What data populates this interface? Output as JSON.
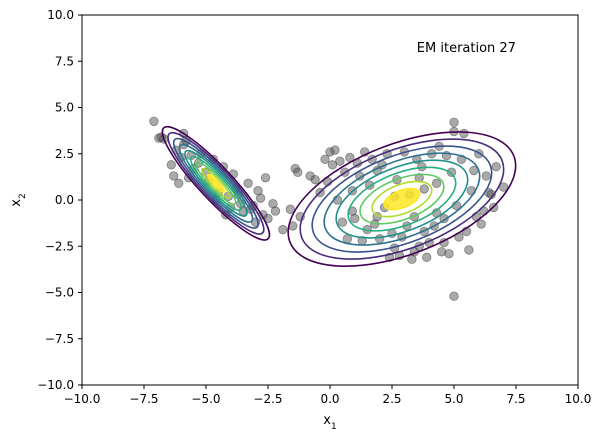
{
  "chart_data": {
    "type": "scatter",
    "title": "",
    "xlabel": "x",
    "xlabel_sub": "1",
    "ylabel": "x",
    "ylabel_sub": "2",
    "xlim": [
      -10,
      10
    ],
    "ylim": [
      -10,
      10
    ],
    "xticks": [
      -10,
      -7.5,
      -5,
      -2.5,
      0,
      2.5,
      5,
      7.5,
      10
    ],
    "yticks": [
      -10,
      -7.5,
      -5,
      -2.5,
      0,
      2.5,
      5,
      7.5,
      10
    ],
    "xtick_labels": [
      "−10.0",
      "−7.5",
      "−5.0",
      "−2.5",
      "0.0",
      "2.5",
      "5.0",
      "7.5",
      "10.0"
    ],
    "ytick_labels": [
      "−10.0",
      "−7.5",
      "−5.0",
      "−2.5",
      "0.0",
      "2.5",
      "5.0",
      "7.5",
      "10.0"
    ],
    "annotation": {
      "text": "EM iteration 27",
      "x": 3.5,
      "y": 8.0
    },
    "grid": false,
    "points": [
      [
        -7.1,
        4.25
      ],
      [
        -6.9,
        3.35
      ],
      [
        -6.8,
        3.4
      ],
      [
        -6.7,
        3.3
      ],
      [
        -6.4,
        1.9
      ],
      [
        -6.2,
        2.7
      ],
      [
        -6.0,
        2.3
      ],
      [
        -5.9,
        3.6
      ],
      [
        -5.9,
        3.0
      ],
      [
        -5.8,
        3.2
      ],
      [
        -5.6,
        2.4
      ],
      [
        -5.5,
        1.7
      ],
      [
        -5.3,
        2.0
      ],
      [
        -5.2,
        2.5
      ],
      [
        -5.0,
        1.5
      ],
      [
        -4.9,
        1.0
      ],
      [
        -4.7,
        2.2
      ],
      [
        -4.5,
        0.4
      ],
      [
        -4.3,
        1.8
      ],
      [
        -4.1,
        0.2
      ],
      [
        -4.0,
        -0.4
      ],
      [
        -3.9,
        1.4
      ],
      [
        -3.8,
        0.6
      ],
      [
        -3.6,
        -0.2
      ],
      [
        -3.5,
        -0.6
      ],
      [
        -3.3,
        0.9
      ],
      [
        -3.1,
        -0.3
      ],
      [
        -3.0,
        -1.2
      ],
      [
        -2.8,
        0.1
      ],
      [
        -2.7,
        -0.8
      ],
      [
        -2.6,
        1.2
      ],
      [
        -2.5,
        -1.0
      ],
      [
        -2.3,
        -0.2
      ],
      [
        -2.2,
        -0.6
      ],
      [
        -1.9,
        -1.6
      ],
      [
        -1.6,
        -0.5
      ],
      [
        -1.5,
        -1.4
      ],
      [
        -1.4,
        1.7
      ],
      [
        -1.3,
        1.5
      ],
      [
        -1.2,
        -0.9
      ],
      [
        -6.3,
        1.3
      ],
      [
        -6.1,
        0.9
      ],
      [
        -5.7,
        1.2
      ],
      [
        -4.6,
        0.0
      ],
      [
        -4.2,
        -0.8
      ],
      [
        -3.7,
        0.3
      ],
      [
        -3.2,
        -0.5
      ],
      [
        -2.9,
        0.5
      ],
      [
        -0.8,
        1.3
      ],
      [
        -0.6,
        1.1
      ],
      [
        -0.4,
        0.4
      ],
      [
        -0.2,
        2.2
      ],
      [
        0.0,
        2.6
      ],
      [
        0.1,
        1.9
      ],
      [
        0.2,
        2.7
      ],
      [
        0.3,
        0.0
      ],
      [
        0.5,
        -1.2
      ],
      [
        0.6,
        1.5
      ],
      [
        0.8,
        2.3
      ],
      [
        0.9,
        -0.6
      ],
      [
        1.0,
        -1.0
      ],
      [
        1.1,
        2.0
      ],
      [
        1.2,
        1.3
      ],
      [
        1.3,
        -2.2
      ],
      [
        1.5,
        -1.6
      ],
      [
        1.6,
        0.8
      ],
      [
        1.7,
        2.2
      ],
      [
        1.8,
        -1.3
      ],
      [
        1.9,
        1.6
      ],
      [
        2.0,
        -2.1
      ],
      [
        2.2,
        -0.4
      ],
      [
        2.3,
        2.5
      ],
      [
        2.5,
        -1.8
      ],
      [
        2.6,
        -2.6
      ],
      [
        2.7,
        1.1
      ],
      [
        2.8,
        -3.0
      ],
      [
        2.9,
        -2.0
      ],
      [
        3.0,
        2.6
      ],
      [
        3.1,
        -1.4
      ],
      [
        3.2,
        0.3
      ],
      [
        3.3,
        -3.2
      ],
      [
        3.4,
        -0.9
      ],
      [
        3.5,
        2.2
      ],
      [
        3.6,
        -2.5
      ],
      [
        3.7,
        1.8
      ],
      [
        3.8,
        -1.7
      ],
      [
        3.9,
        -3.1
      ],
      [
        4.0,
        -2.3
      ],
      [
        4.1,
        2.5
      ],
      [
        4.2,
        -1.4
      ],
      [
        4.3,
        0.9
      ],
      [
        4.4,
        2.9
      ],
      [
        4.5,
        -2.8
      ],
      [
        4.6,
        -1.0
      ],
      [
        4.7,
        2.4
      ],
      [
        4.8,
        -2.9
      ],
      [
        4.9,
        1.5
      ],
      [
        5.0,
        3.7
      ],
      [
        5.0,
        4.2
      ],
      [
        5.1,
        -0.3
      ],
      [
        5.2,
        -2.0
      ],
      [
        5.3,
        2.2
      ],
      [
        5.4,
        3.6
      ],
      [
        5.5,
        -1.7
      ],
      [
        5.6,
        -2.7
      ],
      [
        5.7,
        0.5
      ],
      [
        5.8,
        1.6
      ],
      [
        5.9,
        -0.9
      ],
      [
        6.0,
        2.5
      ],
      [
        6.1,
        -1.3
      ],
      [
        6.2,
        -0.6
      ],
      [
        6.3,
        1.3
      ],
      [
        6.4,
        0.4
      ],
      [
        6.5,
        0.3
      ],
      [
        6.6,
        -0.4
      ],
      [
        6.7,
        1.8
      ],
      [
        7.0,
        0.7
      ],
      [
        5.0,
        -5.2
      ],
      [
        4.6,
        -2.3
      ],
      [
        3.4,
        -2.8
      ],
      [
        2.4,
        -3.1
      ],
      [
        0.7,
        -2.1
      ],
      [
        1.4,
        2.6
      ],
      [
        0.4,
        2.1
      ],
      [
        -0.1,
        1.0
      ],
      [
        2.1,
        1.9
      ],
      [
        3.8,
        0.6
      ],
      [
        4.3,
        -0.7
      ],
      [
        1.9,
        -0.9
      ],
      [
        0.9,
        0.5
      ],
      [
        2.6,
        0.2
      ],
      [
        3.6,
        1.2
      ]
    ],
    "components": [
      {
        "mean": [
          -4.6,
          0.9
        ],
        "covariance": [
          [
            0.9,
            -0.8
          ],
          [
            -0.8,
            1.0
          ]
        ]
      },
      {
        "mean": [
          2.9,
          0.05
        ],
        "covariance": [
          [
            4.0,
            0.9
          ],
          [
            0.9,
            2.0
          ]
        ]
      }
    ],
    "contour_levels": 9,
    "colors": {
      "points": "#555555",
      "contours": [
        "#440154",
        "#472d7b",
        "#3b528b",
        "#2c728e",
        "#21918c",
        "#28ae80",
        "#5ec962",
        "#addc30",
        "#fde725"
      ]
    }
  }
}
